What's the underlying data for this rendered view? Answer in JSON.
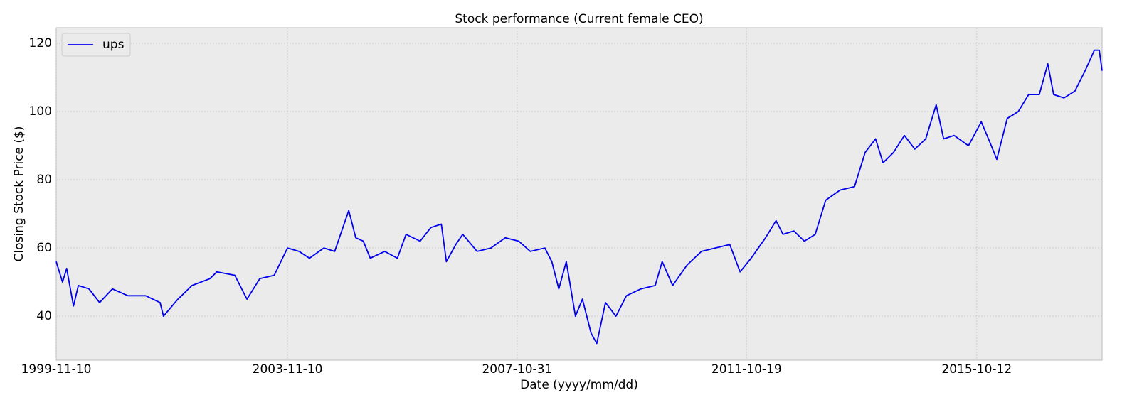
{
  "chart_data": {
    "type": "line",
    "title": "Stock performance (Current female CEO)",
    "x_label": "Date (yyyy/mm/dd)",
    "y_label": "Closing Stock Price ($)",
    "x": [
      "1999-11-10",
      "1999-12-20",
      "2000-01-15",
      "2000-02-27",
      "2000-03-29",
      "2000-06-04",
      "2000-08-10",
      "2000-10-30",
      "2001-02-05",
      "2001-05-28",
      "2001-08-27",
      "2001-09-18",
      "2001-12-18",
      "2002-03-17",
      "2002-07-08",
      "2002-08-21",
      "2002-12-12",
      "2003-02-27",
      "2003-05-19",
      "2003-08-18",
      "2003-11-10",
      "2004-01-22",
      "2004-03-28",
      "2004-06-27",
      "2004-09-03",
      "2004-12-01",
      "2005-01-14",
      "2005-03-03",
      "2005-04-16",
      "2005-07-16",
      "2005-10-04",
      "2005-11-28",
      "2006-02-25",
      "2006-05-04",
      "2006-07-09",
      "2006-08-10",
      "2006-10-08",
      "2006-11-21",
      "2007-02-20",
      "2007-05-18",
      "2007-08-17",
      "2007-11-10",
      "2008-01-22",
      "2008-04-23",
      "2008-06-06",
      "2008-07-20",
      "2008-09-05",
      "2008-11-02",
      "2008-12-16",
      "2009-02-09",
      "2009-03-17",
      "2009-05-11",
      "2009-07-16",
      "2009-09-20",
      "2009-12-20",
      "2010-03-21",
      "2010-05-04",
      "2010-07-09",
      "2010-10-08",
      "2011-01-07",
      "2011-04-05",
      "2011-07-05",
      "2011-09-08",
      "2011-11-17",
      "2012-02-16",
      "2012-04-22",
      "2012-06-05",
      "2012-08-13",
      "2012-10-18",
      "2012-12-26",
      "2013-03-02",
      "2013-06-01",
      "2013-08-31",
      "2013-11-06",
      "2014-01-11",
      "2014-02-27",
      "2014-05-04",
      "2014-07-12",
      "2014-09-16",
      "2014-11-24",
      "2015-01-29",
      "2015-03-17",
      "2015-05-22",
      "2015-08-21",
      "2015-11-10",
      "2016-01-03",
      "2016-02-16",
      "2016-04-22",
      "2016-06-30",
      "2016-09-04",
      "2016-11-10",
      "2017-01-03",
      "2017-02-09",
      "2017-04-15",
      "2017-06-23",
      "2017-08-27",
      "2017-10-24",
      "2017-11-24",
      "2017-12-12"
    ],
    "series": [
      {
        "name": "ups",
        "color": "#0000ee",
        "values": [
          56,
          50,
          54,
          43,
          49,
          48,
          44,
          48,
          46,
          46,
          44,
          40,
          45,
          49,
          51,
          53,
          52,
          45,
          51,
          52,
          60,
          59,
          57,
          60,
          59,
          71,
          63,
          62,
          57,
          59,
          57,
          64,
          62,
          66,
          67,
          56,
          61,
          64,
          59,
          60,
          63,
          62,
          59,
          60,
          56,
          48,
          56,
          40,
          45,
          35,
          32,
          44,
          40,
          46,
          48,
          49,
          56,
          49,
          55,
          59,
          60,
          61,
          53,
          57,
          63,
          68,
          64,
          65,
          62,
          64,
          74,
          77,
          78,
          88,
          92,
          85,
          88,
          93,
          89,
          92,
          102,
          92,
          93,
          90,
          97,
          91,
          86,
          98,
          100,
          105,
          105,
          114,
          105,
          104,
          106,
          112,
          118,
          118,
          112
        ]
      }
    ],
    "xlim": [
      "1999-11-10",
      "2017-12-12"
    ],
    "xticks": [
      "1999-11-10",
      "2003-11-10",
      "2007-10-31",
      "2011-10-19",
      "2015-10-12"
    ],
    "ylim": [
      27.1,
      124.6
    ],
    "yticks": [
      40,
      60,
      80,
      100,
      120
    ],
    "grid": true,
    "legend": "upper left"
  }
}
